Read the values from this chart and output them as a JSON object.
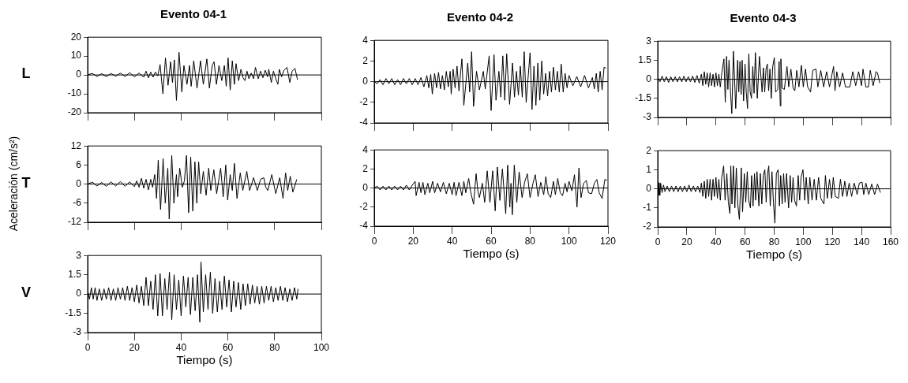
{
  "chart_data": [
    {
      "type": "line",
      "title": "Evento 04-1",
      "annotations": [
        "L"
      ],
      "color": "#000000",
      "xlim": [
        0,
        100
      ],
      "xticks": [
        0,
        20,
        40,
        60,
        80,
        100
      ],
      "ylim": [
        -20,
        20
      ],
      "yticks": [
        -20,
        -10,
        0,
        10,
        20
      ],
      "tick_labels": "y",
      "ref_lines": [
        {
          "axis": "y",
          "value": 0
        }
      ],
      "x": [
        0,
        2,
        4,
        6,
        8,
        10,
        12,
        14,
        16,
        18,
        20,
        22,
        24,
        25,
        26,
        27,
        28,
        29,
        30,
        31,
        32.2,
        33.3,
        34.4,
        35.5,
        36.3,
        37.1,
        38,
        39.1,
        40.3,
        41.2,
        42.5,
        43.6,
        44.3,
        45.4,
        46.8,
        48.3,
        49.5,
        51,
        52.1,
        53.3,
        54.1,
        55.1,
        56.2,
        57.4,
        58.5,
        59.3,
        60.1,
        61,
        61.9,
        62.8,
        63.5,
        64.6,
        65.6,
        66.5,
        67.3,
        68.2,
        69,
        70,
        71,
        71.8,
        73,
        74,
        75,
        76,
        77,
        77.5,
        78.6,
        79.5,
        80.5,
        81.4,
        82,
        83,
        84,
        85.3,
        86.5,
        87.5,
        88.7,
        89.8
      ],
      "values": [
        0,
        0.8,
        -0.8,
        0.7,
        -0.9,
        0.8,
        -0.7,
        1,
        -0.8,
        1.2,
        -1,
        1,
        -1.2,
        2,
        -1.5,
        1.5,
        -1.2,
        1.5,
        -0.5,
        5.5,
        -10,
        9,
        -5.5,
        7,
        -4,
        8,
        -13.5,
        12,
        -9,
        5,
        -5,
        5,
        -6,
        7.5,
        -7,
        7.5,
        -5,
        8.5,
        -7,
        5,
        7,
        -5,
        5,
        -3,
        5,
        -6,
        9,
        -8,
        7.5,
        -5,
        6,
        -3,
        3,
        -1.5,
        -3,
        2,
        -2,
        1,
        -2,
        4,
        -2,
        2,
        -1.5,
        2.5,
        -1,
        3,
        -4,
        2,
        -2,
        -5,
        3,
        -1,
        2.5,
        4,
        -4,
        2,
        3.5,
        -2.5
      ]
    },
    {
      "type": "line",
      "ylabel": "Aceleración (cm/s²)",
      "annotations": [
        "T"
      ],
      "color": "#000000",
      "xlim": [
        0,
        100
      ],
      "xticks": [
        0,
        20,
        40,
        60,
        80,
        100
      ],
      "ylim": [
        -12,
        12
      ],
      "yticks": [
        -12,
        -6,
        0,
        6,
        12
      ],
      "tick_labels": "y",
      "ref_lines": [
        {
          "axis": "y",
          "value": 0
        }
      ],
      "x": [
        0,
        2,
        4,
        6,
        8,
        10,
        12,
        14,
        16,
        18,
        20,
        21,
        22,
        23,
        24,
        25,
        26,
        27,
        27.8,
        28.7,
        29.5,
        30.2,
        31.2,
        32.3,
        33.2,
        34.3,
        34.9,
        36,
        36.9,
        38,
        38.5,
        39.4,
        40.5,
        41.4,
        42.3,
        43.2,
        44.1,
        45,
        45.9,
        46.7,
        47.5,
        48.4,
        49.5,
        50.7,
        51.8,
        52.7,
        54,
        55.2,
        56.9,
        58,
        59.1,
        59.9,
        61,
        61.9,
        62.8,
        63.9,
        65.3,
        66.4,
        68.1,
        69.3,
        71,
        72.6,
        74,
        75.4,
        76.2,
        77.1,
        78.8,
        80.5,
        82.2,
        83.6,
        84.7,
        85.6,
        86.7,
        87.8,
        89.5
      ],
      "values": [
        0,
        0.6,
        -0.6,
        0.5,
        -0.7,
        0.7,
        -0.6,
        0.8,
        -0.7,
        0.7,
        -0.8,
        1,
        -1,
        1.8,
        -1.3,
        1.5,
        -1.8,
        1.5,
        -1,
        3,
        -4.5,
        7.5,
        -8,
        8,
        -6,
        5,
        -11,
        9,
        -6,
        3,
        -4,
        5,
        -1,
        1,
        9,
        -9,
        8.5,
        -8.5,
        7,
        -6,
        7,
        -3,
        4,
        -3.5,
        5,
        -2,
        4.5,
        -3,
        5,
        -4,
        6,
        -5,
        3,
        -2,
        6.5,
        -4.5,
        3.5,
        -2,
        4,
        -2,
        2,
        -2,
        1.5,
        2,
        -1,
        -2,
        3,
        -3,
        2,
        -4.5,
        3.5,
        -2,
        2.5,
        -2.5,
        1.5
      ]
    },
    {
      "type": "line",
      "xlabel": "Tiempo (s)",
      "annotations": [
        "V"
      ],
      "color": "#000000",
      "xlim": [
        0,
        100
      ],
      "xticks": [
        0,
        20,
        40,
        60,
        80,
        100
      ],
      "ylim": [
        -3,
        3
      ],
      "yticks": [
        -3,
        -1.5,
        0,
        1.5,
        3
      ],
      "ref_lines": [
        {
          "axis": "y",
          "value": 0
        }
      ],
      "x": [
        0,
        0.8,
        1.6,
        2.4,
        3.2,
        4,
        5,
        6,
        7,
        8,
        9,
        10,
        11,
        12,
        13,
        14,
        15,
        16,
        17,
        18,
        19,
        20,
        21,
        22,
        23,
        24,
        25,
        26,
        27,
        28,
        29,
        30,
        31,
        32,
        33,
        34,
        35,
        36,
        37,
        38,
        39,
        40,
        41,
        42,
        43,
        44,
        45,
        46,
        47,
        48,
        48.5,
        49.5,
        50.5,
        51.5,
        52.5,
        53.5,
        54.5,
        55.5,
        56.5,
        57.5,
        58.5,
        59.5,
        60.5,
        61.5,
        62.5,
        63.5,
        64.5,
        65.5,
        66.5,
        67.5,
        68.5,
        69.5,
        70.5,
        71.5,
        72.5,
        73.5,
        74.5,
        75.5,
        76.5,
        77.5,
        78.5,
        79.5,
        80.5,
        81.5,
        82.5,
        83.5,
        84.5,
        85.5,
        86.5,
        87.5,
        88.5,
        89.5,
        90
      ],
      "values": [
        0.3,
        -0.4,
        0.5,
        -0.4,
        0.5,
        -0.5,
        0.4,
        -0.5,
        0.4,
        -0.4,
        0.5,
        -0.5,
        0.4,
        -0.5,
        0.5,
        -0.4,
        0.5,
        -0.5,
        0.6,
        -0.5,
        0.5,
        -0.6,
        0.7,
        -0.7,
        0.6,
        -0.9,
        1.3,
        -0.9,
        1,
        -1.2,
        1.5,
        -1.7,
        1.6,
        -1.7,
        1.2,
        -1.2,
        1.7,
        -2,
        1.5,
        -1.2,
        1.1,
        -1.7,
        1.4,
        -1,
        1.3,
        -1.6,
        1.3,
        -1.3,
        1.5,
        -2.2,
        2.5,
        -1.4,
        1.5,
        -1.2,
        1.7,
        -1.5,
        1.2,
        -1.4,
        1,
        -1.2,
        1.4,
        -1,
        1.1,
        -1.4,
        1,
        -1,
        0.9,
        -1.2,
        0.8,
        -0.9,
        0.8,
        -0.8,
        0.7,
        -0.7,
        0.6,
        -0.8,
        0.6,
        -0.7,
        0.6,
        -0.5,
        0.6,
        -0.6,
        0.5,
        -0.5,
        0.6,
        -0.5,
        0.5,
        -0.6,
        0.4,
        -0.5,
        0.5,
        -0.4,
        0.4
      ]
    },
    {
      "type": "line",
      "title": "Evento 04-2",
      "color": "#000000",
      "xlim": [
        0,
        120
      ],
      "xticks": [
        0,
        20,
        40,
        60,
        80,
        100,
        120
      ],
      "ylim": [
        -4,
        4
      ],
      "yticks": [
        -4,
        -2,
        0,
        2,
        4
      ],
      "tick_labels": "y",
      "ref_lines": [
        {
          "axis": "y",
          "value": 0
        }
      ],
      "x": [
        0,
        1.5,
        3,
        4.5,
        6,
        7.5,
        9,
        10.5,
        12,
        13.5,
        15,
        16.5,
        18,
        19.5,
        21,
        22.5,
        24,
        25.5,
        27,
        28,
        29,
        29.8,
        31,
        32,
        33,
        34,
        35,
        36,
        37,
        38,
        39,
        39.5,
        40.5,
        41.5,
        42.5,
        43.5,
        45,
        46,
        48,
        49,
        50,
        51,
        52.5,
        54,
        56,
        57,
        59,
        60,
        61.5,
        62.5,
        64,
        65,
        66,
        67,
        68,
        69.5,
        71,
        72,
        73,
        74,
        75,
        76,
        77,
        78,
        80,
        81,
        82,
        83,
        84,
        85,
        86,
        87,
        88,
        89,
        90,
        91,
        92,
        93,
        94,
        95,
        96,
        97,
        98,
        99,
        100,
        102,
        104,
        106,
        108,
        110,
        112,
        113,
        114,
        115,
        116,
        117,
        118,
        119
      ],
      "values": [
        0,
        -0.2,
        0.2,
        -0.3,
        0.3,
        -0.2,
        0.3,
        -0.3,
        0.2,
        -0.3,
        0.3,
        -0.2,
        0.3,
        -0.3,
        0.3,
        -0.3,
        0.4,
        -0.5,
        0.6,
        -0.6,
        0.7,
        -1.2,
        0.8,
        -0.6,
        0.9,
        -0.7,
        0.6,
        -0.8,
        1,
        -0.5,
        1,
        -1.2,
        1.2,
        -0.6,
        1.5,
        -0.9,
        2.2,
        -2.3,
        1.8,
        -1,
        2.9,
        -2.4,
        1,
        -0.8,
        1,
        -0.7,
        2.5,
        -2.8,
        2.6,
        -1.8,
        1,
        -1.5,
        2.5,
        -1.8,
        2.7,
        -2.2,
        1.8,
        -1.5,
        1,
        -1.3,
        1.5,
        -1.5,
        2.9,
        -2,
        2.8,
        -2.7,
        1.5,
        -2.3,
        1.8,
        -1.8,
        2,
        -1.2,
        0.8,
        -1.4,
        1,
        -1,
        1.4,
        -0.8,
        1,
        -1,
        1.7,
        -1,
        0.8,
        -0.6,
        0.6,
        -0.4,
        0.5,
        -0.5,
        0.6,
        -0.6,
        0.4,
        -0.7,
        0.8,
        -1,
        1,
        -0.8,
        1.4,
        1.3
      ]
    },
    {
      "type": "line",
      "xlabel": "Tiempo (s)",
      "color": "#000000",
      "xlim": [
        0,
        120
      ],
      "xticks": [
        0,
        20,
        40,
        60,
        80,
        100,
        120
      ],
      "ylim": [
        -4,
        4
      ],
      "yticks": [
        -4,
        -2,
        0,
        2,
        4
      ],
      "ref_lines": [
        {
          "axis": "y",
          "value": 0
        }
      ],
      "x": [
        0,
        1.5,
        3,
        4.5,
        6,
        7.5,
        9,
        10.5,
        12,
        13.5,
        15,
        16.5,
        18,
        19.5,
        21,
        21.5,
        23,
        24,
        25,
        26,
        27.5,
        28.5,
        30,
        31,
        32.5,
        34,
        35.5,
        37,
        38.5,
        40,
        41,
        42,
        43.5,
        45,
        46,
        47,
        48.5,
        49.5,
        51,
        52.3,
        53.2,
        54,
        55.5,
        56.7,
        58,
        59.4,
        60.8,
        62.1,
        63.2,
        64.5,
        65.8,
        67.5,
        68.5,
        69.6,
        70.2,
        70.9,
        71.9,
        73.2,
        74.4,
        75.9,
        77.2,
        78.6,
        80,
        81.5,
        82.7,
        84.1,
        85.5,
        87,
        88.1,
        89.3,
        90.6,
        92,
        93,
        94.2,
        95.5,
        96.7,
        98,
        99,
        100,
        101.5,
        102.8,
        104.1,
        105.1,
        106.2,
        107.5,
        108.9,
        110,
        111.6,
        113,
        114.3,
        115.5,
        117,
        118.4,
        119.5
      ],
      "values": [
        0,
        0.2,
        -0.2,
        0.2,
        -0.2,
        0.2,
        -0.2,
        0.2,
        -0.2,
        0.2,
        -0.2,
        0.3,
        -0.2,
        0.3,
        0.7,
        -0.8,
        0.6,
        -0.5,
        0.6,
        -0.7,
        0.5,
        -0.5,
        0.7,
        -0.5,
        0.5,
        -0.4,
        0.6,
        -0.6,
        0.5,
        -0.7,
        0.6,
        -0.8,
        0.6,
        -0.8,
        0.7,
        -0.5,
        1,
        -0.4,
        -1.7,
        1.5,
        -0.3,
        -1,
        0.5,
        -1.5,
        1.8,
        -1.5,
        1.8,
        -2.4,
        2.2,
        -1.3,
        2,
        -2.7,
        2.4,
        -2,
        0.5,
        -2.8,
        2.4,
        -1.5,
        1.7,
        -1,
        0.6,
        1.5,
        -1,
        0.5,
        1.4,
        -0.9,
        0.6,
        -0.7,
        1.2,
        -0.6,
        -1,
        0.7,
        -0.7,
        1,
        -0.5,
        -0.8,
        0.5,
        -0.4,
        0.7,
        -0.3,
        1.4,
        -2,
        2.1,
        -1,
        0.5,
        0.8,
        -0.5,
        -0.6,
        0.5,
        0.9,
        -0.5,
        -1.1,
        0.9,
        0.8
      ]
    },
    {
      "type": "line",
      "title": "Evento 04-3",
      "color": "#000000",
      "xlim": [
        0,
        160
      ],
      "xticks": [
        0,
        20,
        40,
        60,
        80,
        100,
        120,
        140,
        160
      ],
      "ylim": [
        -3,
        3
      ],
      "yticks": [
        -3,
        -1.5,
        0,
        1.5,
        3
      ],
      "tick_labels": "y",
      "ref_lines": [
        {
          "axis": "y",
          "value": 0
        }
      ],
      "x": [
        0,
        1.5,
        3,
        4.5,
        6,
        7.5,
        9,
        10.5,
        12,
        13.5,
        15,
        16.5,
        18,
        19.5,
        21,
        22.5,
        24,
        25.5,
        27,
        28.5,
        30,
        31,
        32,
        33,
        34,
        35,
        36,
        37,
        38,
        39,
        40,
        41,
        42,
        43,
        44,
        45.5,
        46.4,
        47.3,
        48.2,
        49,
        50,
        50.9,
        52,
        53.6,
        54.9,
        55.7,
        56.5,
        57.3,
        58,
        59,
        60,
        60.8,
        61.7,
        62.6,
        63.5,
        64.4,
        65.3,
        66.2,
        67.1,
        68.4,
        69.9,
        71.7,
        72.6,
        73.5,
        74.4,
        75.3,
        76.2,
        77.1,
        78,
        79,
        80.1,
        81,
        82.5,
        83.4,
        84.2,
        84.6,
        85.5,
        87,
        88.8,
        90,
        91.5,
        93,
        94.2,
        95.5,
        97,
        98.7,
        100,
        101.5,
        103,
        105,
        106.5,
        108.7,
        110,
        112,
        114,
        116,
        118,
        120.8,
        121.8,
        123,
        125,
        127,
        129,
        132,
        134,
        136,
        138,
        140,
        141,
        143,
        144.8,
        146,
        148,
        150,
        151,
        152.5
      ],
      "values": [
        0.2,
        -0.2,
        0.25,
        -0.2,
        0.2,
        -0.25,
        0.2,
        -0.2,
        0.2,
        -0.2,
        0.2,
        -0.2,
        0.25,
        -0.2,
        0.2,
        -0.2,
        0.25,
        -0.25,
        0.3,
        -0.3,
        0.4,
        -0.5,
        0.6,
        -0.4,
        0.5,
        -0.6,
        0.5,
        -0.5,
        0.4,
        -0.6,
        0.5,
        -0.5,
        0.4,
        -0.6,
        0.5,
        1.6,
        -1.8,
        1.8,
        -0.8,
        1.5,
        -1,
        -2.7,
        2.2,
        -2.3,
        1.5,
        -1,
        1.4,
        -1.2,
        1.5,
        -1.7,
        1.2,
        -1,
        -2.3,
        2,
        -1,
        -1.5,
        1,
        -1.1,
        2.1,
        -1.5,
        1.8,
        -1,
        0.9,
        -1,
        0.8,
        1.2,
        -0.9,
        0.8,
        -1.5,
        1,
        1.7,
        -1,
        -0.8,
        1.4,
        -2.1,
        1.6,
        -0.7,
        -0.8,
        1,
        -0.6,
        0.8,
        -0.7,
        -0.9,
        0.7,
        -0.6,
        1.1,
        -0.6,
        0.8,
        -0.6,
        -1,
        0.7,
        0.8,
        -0.6,
        0.7,
        -0.6,
        0.6,
        -0.6,
        1,
        -0.9,
        0.6,
        -0.6,
        0.5,
        -0.6,
        -0.6,
        0.6,
        -0.5,
        0.6,
        -0.5,
        0.8,
        -0.6,
        -0.6,
        0.7,
        -0.5,
        0.6,
        0.5,
        -0.3
      ]
    },
    {
      "type": "line",
      "xlabel": "Tiempo (s)",
      "color": "#000000",
      "xlim": [
        0,
        160
      ],
      "xticks": [
        0,
        20,
        40,
        60,
        80,
        100,
        120,
        140,
        160
      ],
      "ylim": [
        -2,
        2
      ],
      "yticks": [
        -2,
        -1,
        0,
        1,
        2
      ],
      "ref_lines": [
        {
          "axis": "y",
          "value": 0
        }
      ],
      "x": [
        0,
        0.5,
        1,
        1.5,
        2,
        3,
        4,
        5,
        6.5,
        8,
        9.5,
        11,
        12.5,
        14,
        15.5,
        17,
        18.5,
        20,
        21.5,
        23,
        24.5,
        26,
        27.5,
        29,
        30,
        31,
        32,
        33,
        34,
        35,
        36,
        37,
        38,
        39,
        40,
        41,
        42,
        43,
        44,
        45.3,
        46.3,
        47.5,
        48.5,
        49.6,
        50.2,
        51,
        52,
        53,
        54,
        55,
        56.1,
        57.4,
        58.3,
        59.5,
        60.5,
        61.5,
        62.5,
        63.7,
        64.5,
        65.5,
        66.5,
        67.3,
        68.2,
        69.5,
        70.5,
        71.5,
        72.5,
        73.6,
        74.5,
        75.5,
        76.3,
        77.3,
        78.5,
        79.5,
        80.5,
        81.5,
        82.7,
        83.6,
        84.5,
        85.5,
        86.5,
        87.5,
        88.5,
        89.9,
        91,
        92,
        93,
        94,
        95.3,
        96.5,
        97.5,
        98.5,
        99.8,
        101,
        102,
        103.4,
        104.5,
        106,
        107.5,
        109,
        110.5,
        112,
        114.2,
        115.2,
        116.5,
        118,
        119.5,
        120.6,
        122,
        124.2,
        125.5,
        127,
        128.5,
        130,
        131.5,
        133.2,
        135,
        137,
        138.5,
        140.4,
        141.5,
        143,
        145,
        147,
        149,
        151,
        153
      ],
      "values": [
        0.35,
        -0.35,
        0.3,
        -0.35,
        0.3,
        -0.2,
        0.2,
        -0.15,
        0.15,
        -0.15,
        0.15,
        -0.15,
        0.15,
        -0.15,
        0.15,
        -0.15,
        0.15,
        -0.15,
        0.2,
        -0.15,
        0.15,
        -0.15,
        0.15,
        -0.2,
        0.3,
        -0.4,
        0.4,
        -0.5,
        0.5,
        -0.4,
        0.5,
        -0.6,
        0.5,
        -0.4,
        0.6,
        -0.5,
        0.5,
        -0.6,
        0.6,
        1.2,
        -0.6,
        0.8,
        -0.7,
        -1.3,
        1.2,
        -0.8,
        1.2,
        -1,
        1.1,
        -0.8,
        -1.6,
        1.1,
        -1.2,
        0.8,
        -0.7,
        0.9,
        -0.6,
        -1,
        0.7,
        -0.9,
        0.8,
        -0.6,
        0.9,
        -0.9,
        0.8,
        -0.8,
        0.7,
        1,
        -0.7,
        0.8,
        1.2,
        -0.9,
        0.9,
        -0.7,
        -1.8,
        0.8,
        1,
        -0.9,
        0.7,
        -0.8,
        0.8,
        -0.7,
        0.8,
        -1,
        0.7,
        -0.7,
        0.6,
        -0.6,
        -0.9,
        0.7,
        -0.6,
        0.6,
        1,
        -0.6,
        0.6,
        -0.8,
        0.6,
        -0.6,
        0.5,
        -0.6,
        0.6,
        -0.5,
        -0.8,
        0.7,
        -0.5,
        0.5,
        -0.5,
        0.6,
        -0.4,
        -0.5,
        0.5,
        -0.4,
        0.4,
        -0.4,
        0.3,
        -0.4,
        0.3,
        -0.3,
        0.3,
        0.35,
        -0.3,
        0.3,
        -0.3,
        0.25,
        -0.3,
        0.25,
        -0.2
      ]
    }
  ]
}
